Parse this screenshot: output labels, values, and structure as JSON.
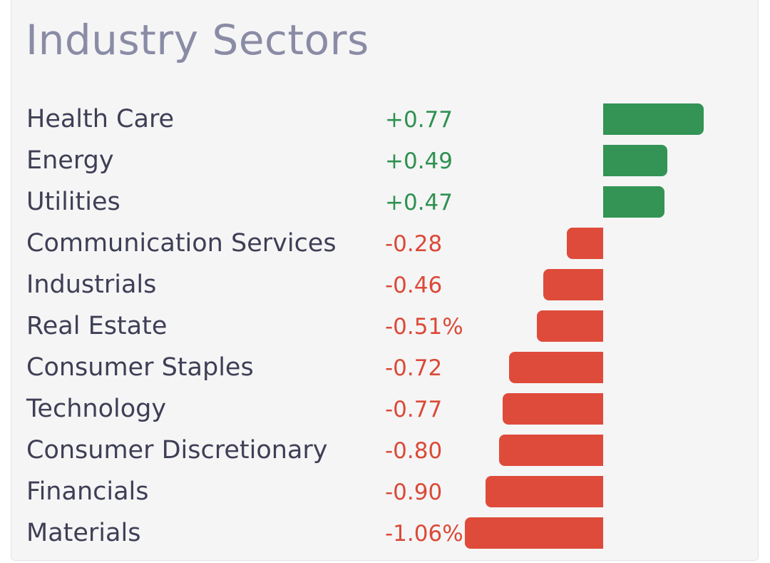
{
  "title": "Industry Sectors",
  "colors": {
    "positive": "#339455",
    "negative": "#df4b3a"
  },
  "chart_data": {
    "type": "bar",
    "orientation": "horizontal",
    "title": "Industry Sectors",
    "categories": [
      "Health Care",
      "Energy",
      "Utilities",
      "Communication Services",
      "Industrials",
      "Real Estate",
      "Consumer Staples",
      "Technology",
      "Consumer Discretionary",
      "Financials",
      "Materials"
    ],
    "values": [
      0.77,
      0.49,
      0.47,
      -0.28,
      -0.46,
      -0.51,
      -0.72,
      -0.77,
      -0.8,
      -0.9,
      -1.06
    ],
    "value_labels": [
      "+0.77",
      "+0.49",
      "+0.47",
      "-0.28",
      "-0.46",
      "-0.51%",
      "-0.72",
      "-0.77",
      "-0.80",
      "-0.90",
      "-1.06%"
    ],
    "grid": false,
    "legend": "none"
  }
}
